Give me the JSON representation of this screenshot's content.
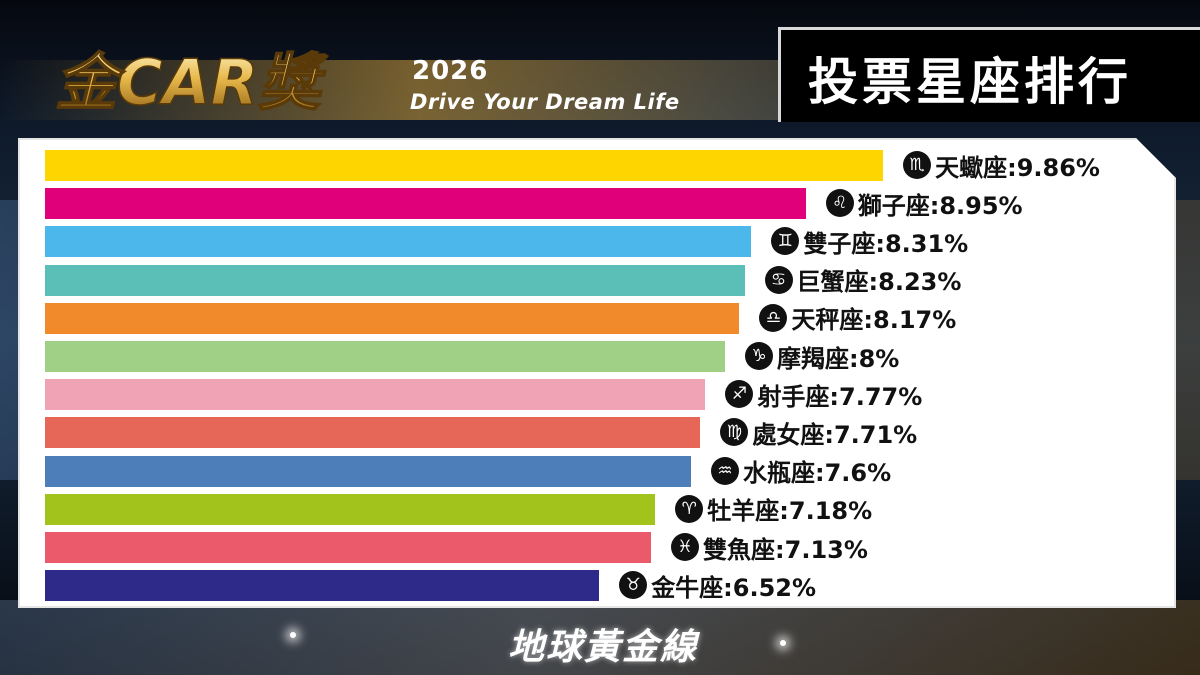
{
  "header": {
    "logo_text": "金CAR獎",
    "year": "2026",
    "tagline": "Drive Your Dream Life",
    "title": "投票星座排行"
  },
  "footer": {
    "brand": "地球黃金線"
  },
  "chart_data": {
    "type": "bar",
    "orientation": "horizontal",
    "value_unit": "%",
    "xlim": [
      0,
      10.5
    ],
    "categories": [
      "天蠍座",
      "獅子座",
      "雙子座",
      "巨蟹座",
      "天秤座",
      "摩羯座",
      "射手座",
      "處女座",
      "水瓶座",
      "牡羊座",
      "雙魚座",
      "金牛座"
    ],
    "values": [
      9.86,
      8.95,
      8.31,
      8.23,
      8.17,
      8,
      7.77,
      7.71,
      7.6,
      7.18,
      7.13,
      6.52
    ],
    "labels": [
      "天蠍座:9.86%",
      "獅子座:8.95%",
      "雙子座:8.31%",
      "巨蟹座:8.23%",
      "天秤座:8.17%",
      "摩羯座:8%",
      "射手座:7.77%",
      "處女座:7.71%",
      "水瓶座:7.6%",
      "牡羊座:7.18%",
      "雙魚座:7.13%",
      "金牛座:6.52%"
    ],
    "icons": [
      "scorpio-icon",
      "leo-icon",
      "gemini-icon",
      "cancer-icon",
      "libra-icon",
      "capricorn-icon",
      "sagittarius-icon",
      "virgo-icon",
      "aquarius-icon",
      "aries-icon",
      "pisces-icon",
      "taurus-icon"
    ],
    "icon_glyphs": [
      "♏",
      "♌",
      "♊",
      "♋",
      "♎",
      "♑",
      "♐",
      "♍",
      "♒",
      "♈",
      "♓",
      "♉"
    ],
    "colors": [
      "#FFD500",
      "#E0007A",
      "#4BB7EA",
      "#5BBFB8",
      "#F08A2A",
      "#9FD086",
      "#F0A3B5",
      "#E66658",
      "#4E7EBA",
      "#A1C31B",
      "#EA5A6B",
      "#2E2A8A"
    ],
    "grid": false,
    "legend": "none"
  }
}
